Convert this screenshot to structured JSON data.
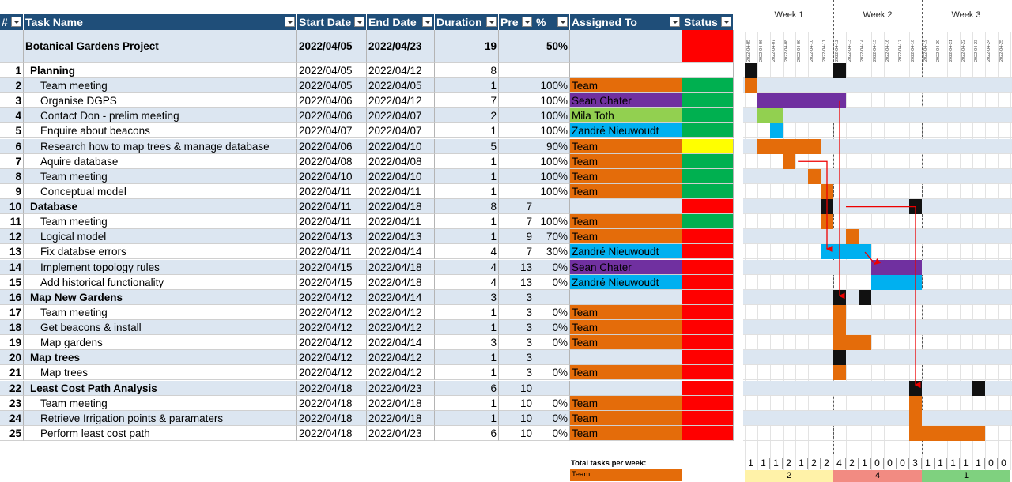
{
  "colors": {
    "header_bg": "#1f4e79",
    "row_band": "#dce6f1",
    "team": "#e46c0a",
    "sean": "#7030a0",
    "mila": "#92d050",
    "zandre": "#00b0f0",
    "status_red": "#ff0000",
    "status_green": "#00b050",
    "status_yellow": "#ffff00",
    "milestone": "#111111",
    "week1": "#fff2a8",
    "week2": "#f28b82",
    "week3": "#7fd17f"
  },
  "headers": {
    "num": "#",
    "task": "Task Name",
    "start": "Start Date",
    "end": "End Date",
    "duration": "Duration",
    "pre": "Pre",
    "pct": "%",
    "assigned": "Assigned To",
    "status": "Status"
  },
  "project": {
    "name": "Botanical Gardens Project",
    "start": "2022/04/05",
    "end": "2022/04/23",
    "duration": "19",
    "pct": "50%",
    "status": "red"
  },
  "tasks": [
    {
      "n": "1",
      "name": "Planning",
      "start": "2022/04/05",
      "end": "2022/04/12",
      "dur": "8",
      "pre": "",
      "pct": "",
      "assigned": "",
      "who": "",
      "status": "none",
      "summary": true,
      "gs": 0,
      "ge": 7
    },
    {
      "n": "2",
      "name": "Team meeting",
      "start": "2022/04/05",
      "end": "2022/04/05",
      "dur": "1",
      "pre": "",
      "pct": "100%",
      "assigned": "Team",
      "who": "team",
      "status": "green",
      "summary": false,
      "gs": 0,
      "ge": 0
    },
    {
      "n": "3",
      "name": "Organise DGPS",
      "start": "2022/04/06",
      "end": "2022/04/12",
      "dur": "7",
      "pre": "",
      "pct": "100%",
      "assigned": "Sean Chater",
      "who": "sean",
      "status": "green",
      "summary": false,
      "gs": 1,
      "ge": 7
    },
    {
      "n": "4",
      "name": "Contact Don - prelim meeting",
      "start": "2022/04/06",
      "end": "2022/04/07",
      "dur": "2",
      "pre": "",
      "pct": "100%",
      "assigned": "Mila Toth",
      "who": "mila",
      "status": "green",
      "summary": false,
      "gs": 1,
      "ge": 2
    },
    {
      "n": "5",
      "name": "Enquire about beacons",
      "start": "2022/04/07",
      "end": "2022/04/07",
      "dur": "1",
      "pre": "",
      "pct": "100%",
      "assigned": "Zandré Nieuwoudt",
      "who": "zandre",
      "status": "green",
      "summary": false,
      "gs": 2,
      "ge": 2
    },
    {
      "n": "6",
      "name": "Research how to map trees & manage database",
      "start": "2022/04/06",
      "end": "2022/04/10",
      "dur": "5",
      "pre": "",
      "pct": "90%",
      "assigned": "Team",
      "who": "team",
      "status": "yellow",
      "summary": false,
      "gs": 1,
      "ge": 5
    },
    {
      "n": "7",
      "name": "Aquire database",
      "start": "2022/04/08",
      "end": "2022/04/08",
      "dur": "1",
      "pre": "",
      "pct": "100%",
      "assigned": "Team",
      "who": "team",
      "status": "green",
      "summary": false,
      "gs": 3,
      "ge": 3
    },
    {
      "n": "8",
      "name": "Team meeting",
      "start": "2022/04/10",
      "end": "2022/04/10",
      "dur": "1",
      "pre": "",
      "pct": "100%",
      "assigned": "Team",
      "who": "team",
      "status": "green",
      "summary": false,
      "gs": 5,
      "ge": 5
    },
    {
      "n": "9",
      "name": "Conceptual model",
      "start": "2022/04/11",
      "end": "2022/04/11",
      "dur": "1",
      "pre": "",
      "pct": "100%",
      "assigned": "Team",
      "who": "team",
      "status": "green",
      "summary": false,
      "gs": 6,
      "ge": 6
    },
    {
      "n": "10",
      "name": "Database",
      "start": "2022/04/11",
      "end": "2022/04/18",
      "dur": "8",
      "pre": "7",
      "pct": "",
      "assigned": "",
      "who": "",
      "status": "red",
      "summary": true,
      "gs": 6,
      "ge": 13
    },
    {
      "n": "11",
      "name": "Team meeting",
      "start": "2022/04/11",
      "end": "2022/04/11",
      "dur": "1",
      "pre": "7",
      "pct": "100%",
      "assigned": "Team",
      "who": "team",
      "status": "green",
      "summary": false,
      "gs": 6,
      "ge": 6
    },
    {
      "n": "12",
      "name": "Logical model",
      "start": "2022/04/13",
      "end": "2022/04/13",
      "dur": "1",
      "pre": "9",
      "pct": "70%",
      "assigned": "Team",
      "who": "team",
      "status": "red",
      "summary": false,
      "gs": 8,
      "ge": 8
    },
    {
      "n": "13",
      "name": "Fix databse errors",
      "start": "2022/04/11",
      "end": "2022/04/14",
      "dur": "4",
      "pre": "7",
      "pct": "30%",
      "assigned": "Zandré Nieuwoudt",
      "who": "zandre",
      "status": "red",
      "summary": false,
      "gs": 6,
      "ge": 9
    },
    {
      "n": "14",
      "name": "Implement topology rules",
      "start": "2022/04/15",
      "end": "2022/04/18",
      "dur": "4",
      "pre": "13",
      "pct": "0%",
      "assigned": "Sean Chater",
      "who": "sean",
      "status": "red",
      "summary": false,
      "gs": 10,
      "ge": 13
    },
    {
      "n": "15",
      "name": "Add historical functionality",
      "start": "2022/04/15",
      "end": "2022/04/18",
      "dur": "4",
      "pre": "13",
      "pct": "0%",
      "assigned": "Zandré Nieuwoudt",
      "who": "zandre",
      "status": "red",
      "summary": false,
      "gs": 10,
      "ge": 13
    },
    {
      "n": "16",
      "name": "Map New Gardens",
      "start": "2022/04/12",
      "end": "2022/04/14",
      "dur": "3",
      "pre": "3",
      "pct": "",
      "assigned": "",
      "who": "",
      "status": "red",
      "summary": true,
      "gs": 7,
      "ge": 9
    },
    {
      "n": "17",
      "name": "Team meeting",
      "start": "2022/04/12",
      "end": "2022/04/12",
      "dur": "1",
      "pre": "3",
      "pct": "0%",
      "assigned": "Team",
      "who": "team",
      "status": "red",
      "summary": false,
      "gs": 7,
      "ge": 7
    },
    {
      "n": "18",
      "name": "Get beacons & install",
      "start": "2022/04/12",
      "end": "2022/04/12",
      "dur": "1",
      "pre": "3",
      "pct": "0%",
      "assigned": "Team",
      "who": "team",
      "status": "red",
      "summary": false,
      "gs": 7,
      "ge": 7
    },
    {
      "n": "19",
      "name": "Map gardens",
      "start": "2022/04/12",
      "end": "2022/04/14",
      "dur": "3",
      "pre": "3",
      "pct": "0%",
      "assigned": "Team",
      "who": "team",
      "status": "red",
      "summary": false,
      "gs": 7,
      "ge": 9
    },
    {
      "n": "20",
      "name": "Map trees",
      "start": "2022/04/12",
      "end": "2022/04/12",
      "dur": "1",
      "pre": "3",
      "pct": "",
      "assigned": "",
      "who": "",
      "status": "red",
      "summary": true,
      "gs": 7,
      "ge": 7
    },
    {
      "n": "21",
      "name": "Map trees",
      "start": "2022/04/12",
      "end": "2022/04/12",
      "dur": "1",
      "pre": "3",
      "pct": "0%",
      "assigned": "Team",
      "who": "team",
      "status": "red",
      "summary": false,
      "gs": 7,
      "ge": 7
    },
    {
      "n": "22",
      "name": "Least Cost Path Analysis",
      "start": "2022/04/18",
      "end": "2022/04/23",
      "dur": "6",
      "pre": "10",
      "pct": "",
      "assigned": "",
      "who": "",
      "status": "red",
      "summary": true,
      "gs": 13,
      "ge": 18
    },
    {
      "n": "23",
      "name": "Team meeting",
      "start": "2022/04/18",
      "end": "2022/04/18",
      "dur": "1",
      "pre": "10",
      "pct": "0%",
      "assigned": "Team",
      "who": "team",
      "status": "red",
      "summary": false,
      "gs": 13,
      "ge": 13
    },
    {
      "n": "24",
      "name": "Retrieve Irrigation points & paramaters",
      "start": "2022/04/18",
      "end": "2022/04/18",
      "dur": "1",
      "pre": "10",
      "pct": "0%",
      "assigned": "Team",
      "who": "team",
      "status": "red",
      "summary": false,
      "gs": 13,
      "ge": 13
    },
    {
      "n": "25",
      "name": "Perform least cost path",
      "start": "2022/04/18",
      "end": "2022/04/23",
      "dur": "6",
      "pre": "10",
      "pct": "0%",
      "assigned": "Team",
      "who": "team",
      "status": "red",
      "summary": false,
      "gs": 13,
      "ge": 18
    }
  ],
  "gantt": {
    "weeks": [
      "Week 1",
      "Week 2",
      "Week 3"
    ],
    "dates": [
      "2022-04-05",
      "2022-04-06",
      "2022-04-07",
      "2022-04-08",
      "2022-04-09",
      "2022-04-10",
      "2022-04-11",
      "2022-04-12",
      "2022-04-13",
      "2022-04-14",
      "2022-04-15",
      "2022-04-16",
      "2022-04-17",
      "2022-04-18",
      "2022-04-19",
      "2022-04-20",
      "2022-04-21",
      "2022-04-22",
      "2022-04-23",
      "2022-04-24",
      "2022-04-25"
    ],
    "counts": [
      "1",
      "1",
      "1",
      "2",
      "1",
      "2",
      "2",
      "4",
      "2",
      "1",
      "0",
      "0",
      "0",
      "3",
      "1",
      "1",
      "1",
      "1",
      "1",
      "0",
      "0"
    ],
    "week_totals": [
      "2",
      "4",
      "1"
    ]
  },
  "footer": {
    "title": "Total tasks per week:",
    "who": "Team"
  }
}
